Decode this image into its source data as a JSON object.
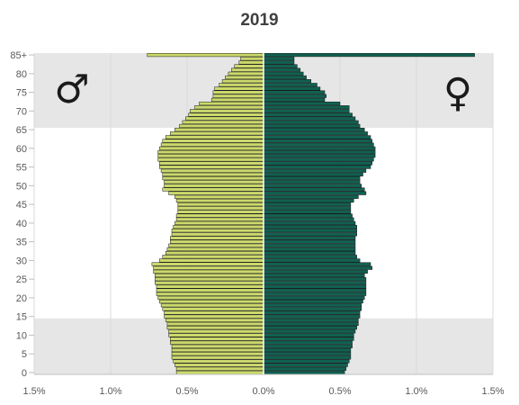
{
  "chart_data": {
    "type": "bar",
    "orientation": "horizontal",
    "title": "2019",
    "age_ticks": [
      "0",
      "5",
      "10",
      "15",
      "20",
      "25",
      "30",
      "35",
      "40",
      "45",
      "50",
      "55",
      "60",
      "65",
      "70",
      "75",
      "80",
      "85+"
    ],
    "x_ticks": [
      "1.5%",
      "1.0%",
      "0.5%",
      "0.0%",
      "0.5%",
      "1.0%",
      "1.5%"
    ],
    "xlim": [
      -1.5,
      1.5
    ],
    "male_symbol": "♂",
    "female_symbol": "♀",
    "shaded_age_bands": [
      [
        0,
        14
      ],
      [
        66,
        85
      ]
    ],
    "grid": true,
    "colors": {
      "male": "#cbd96b",
      "female": "#116152",
      "shade": "#e6e6e6",
      "grid": "#d9d9d9",
      "bar_edge": "#1a1a1a"
    },
    "series": [
      {
        "name": "♂",
        "values": [
          0.57,
          0.57,
          0.58,
          0.59,
          0.6,
          0.6,
          0.6,
          0.6,
          0.61,
          0.61,
          0.62,
          0.62,
          0.63,
          0.63,
          0.64,
          0.65,
          0.65,
          0.66,
          0.67,
          0.68,
          0.69,
          0.7,
          0.7,
          0.7,
          0.71,
          0.71,
          0.71,
          0.72,
          0.72,
          0.73,
          0.68,
          0.66,
          0.64,
          0.63,
          0.62,
          0.61,
          0.61,
          0.6,
          0.6,
          0.59,
          0.58,
          0.57,
          0.57,
          0.56,
          0.56,
          0.56,
          0.57,
          0.58,
          0.62,
          0.66,
          0.65,
          0.65,
          0.66,
          0.66,
          0.67,
          0.68,
          0.68,
          0.69,
          0.69,
          0.69,
          0.68,
          0.67,
          0.66,
          0.64,
          0.61,
          0.58,
          0.55,
          0.53,
          0.51,
          0.49,
          0.48,
          0.45,
          0.42,
          0.34,
          0.33,
          0.33,
          0.32,
          0.29,
          0.27,
          0.25,
          0.23,
          0.21,
          0.19,
          0.16,
          0.15,
          0.76
        ]
      },
      {
        "name": "♀",
        "values": [
          0.53,
          0.54,
          0.55,
          0.56,
          0.57,
          0.57,
          0.57,
          0.58,
          0.58,
          0.59,
          0.59,
          0.6,
          0.61,
          0.62,
          0.62,
          0.63,
          0.63,
          0.64,
          0.64,
          0.65,
          0.66,
          0.67,
          0.67,
          0.67,
          0.67,
          0.67,
          0.66,
          0.68,
          0.71,
          0.7,
          0.63,
          0.61,
          0.6,
          0.6,
          0.6,
          0.6,
          0.6,
          0.61,
          0.61,
          0.61,
          0.6,
          0.59,
          0.58,
          0.57,
          0.57,
          0.57,
          0.59,
          0.62,
          0.67,
          0.66,
          0.64,
          0.63,
          0.63,
          0.65,
          0.67,
          0.7,
          0.71,
          0.72,
          0.73,
          0.73,
          0.73,
          0.72,
          0.71,
          0.7,
          0.68,
          0.66,
          0.63,
          0.62,
          0.6,
          0.58,
          0.56,
          0.56,
          0.5,
          0.4,
          0.41,
          0.4,
          0.37,
          0.35,
          0.31,
          0.28,
          0.26,
          0.24,
          0.22,
          0.2,
          0.2,
          1.38
        ]
      }
    ]
  }
}
